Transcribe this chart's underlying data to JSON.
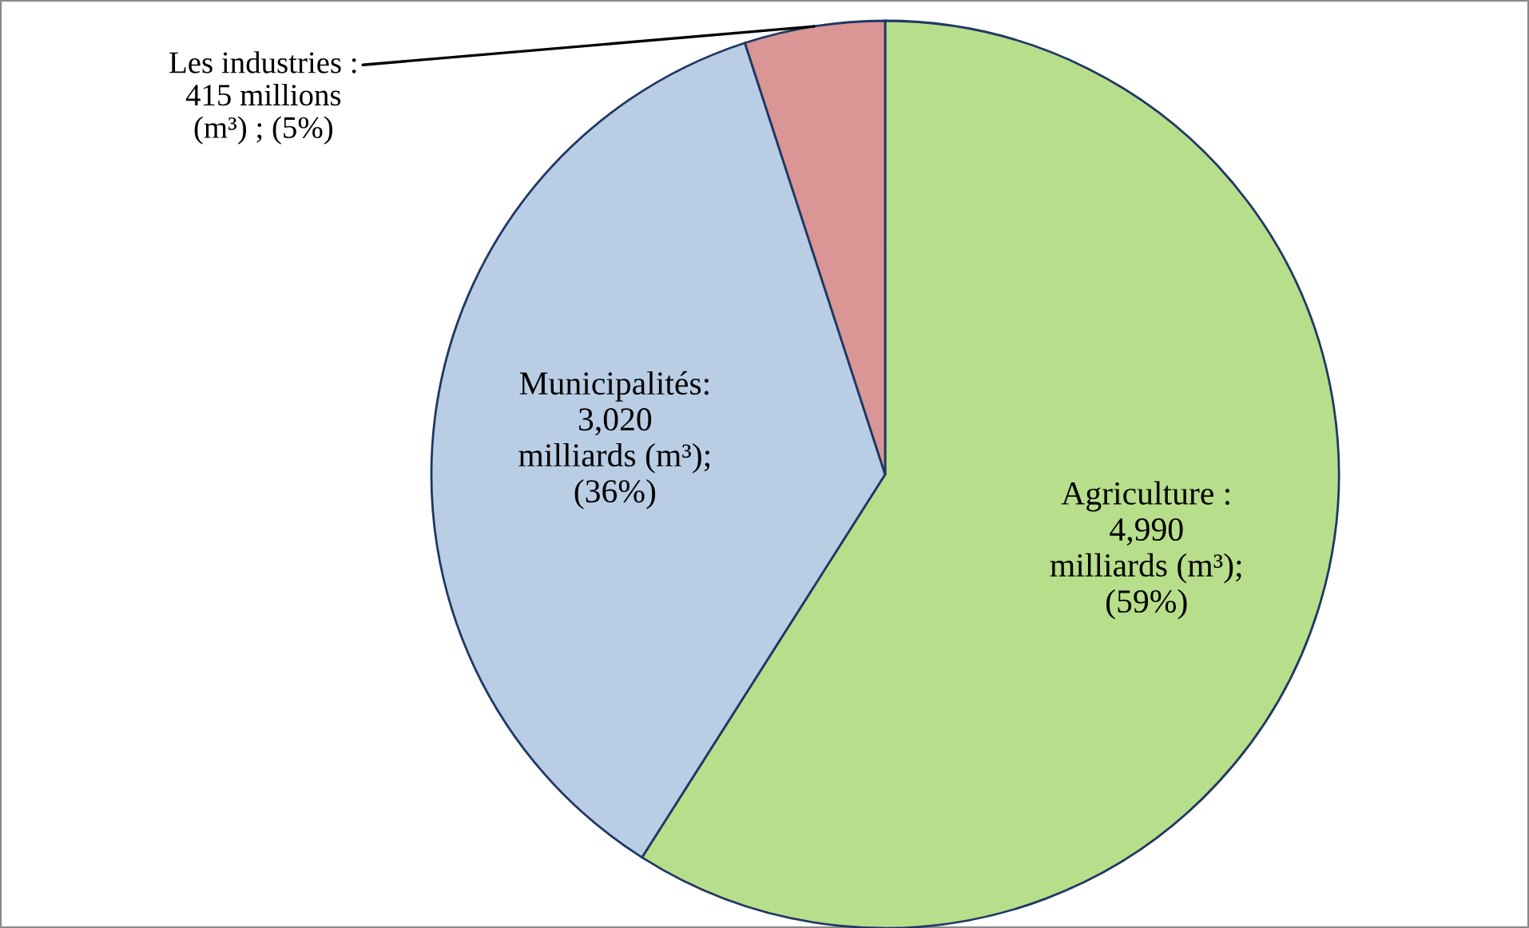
{
  "chart_data": {
    "type": "pie",
    "categories": [
      "Agriculture",
      "Municipalités",
      "Les industries"
    ],
    "values": [
      59,
      36,
      5
    ],
    "value_labels": [
      " :\n4,990\nmilliards (m³);\n(59%)",
      ":\n3,020\nmilliards (m³);\n(36%)",
      " :\n415 millions\n(m³) ; (5%)"
    ],
    "colors": [
      "#b7de8a",
      "#b9cde5",
      "#d99694"
    ]
  }
}
